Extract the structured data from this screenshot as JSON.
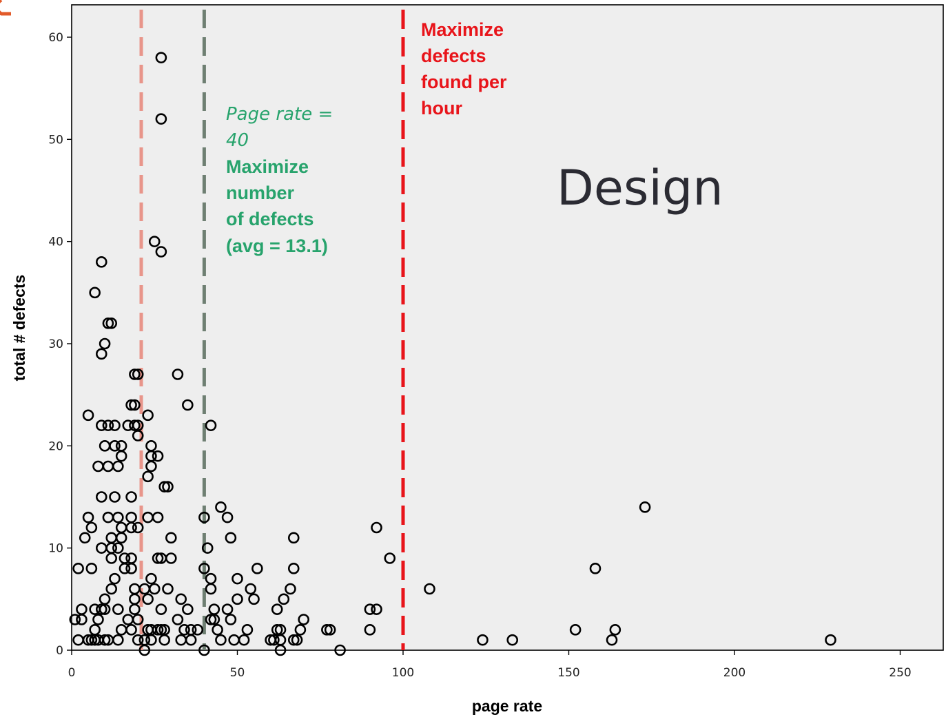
{
  "chart_data": {
    "type": "scatter",
    "xlabel": "page rate",
    "ylabel": "total # defects",
    "xlim": [
      0,
      262
    ],
    "ylim": [
      0,
      63
    ],
    "x_ticks": [
      0,
      50,
      100,
      150,
      200,
      250
    ],
    "y_ticks": [
      0,
      10,
      20,
      30,
      40,
      50,
      60
    ],
    "grid": false,
    "plot_background": "#eeeeee",
    "reference_lines": [
      {
        "x": 21,
        "color": "#e8958a"
      },
      {
        "x": 40,
        "color": "#6e7f72"
      },
      {
        "x": 100,
        "color": "#e8141a"
      }
    ],
    "annotations": {
      "red": [
        "Maximize",
        "defects",
        "found per",
        "hour"
      ],
      "green_italic": [
        "Page rate =",
        "40"
      ],
      "green": [
        "Maximize",
        "number",
        "of defects",
        "(avg = 13.1)"
      ],
      "design": "Design"
    },
    "points": [
      [
        27,
        58
      ],
      [
        27,
        52
      ],
      [
        25,
        40
      ],
      [
        27,
        39
      ],
      [
        9,
        38
      ],
      [
        7,
        35
      ],
      [
        11,
        32
      ],
      [
        12,
        32
      ],
      [
        10,
        30
      ],
      [
        9,
        29
      ],
      [
        19,
        27
      ],
      [
        20,
        27
      ],
      [
        32,
        27
      ],
      [
        18,
        24
      ],
      [
        19,
        24
      ],
      [
        35,
        24
      ],
      [
        5,
        23
      ],
      [
        23,
        23
      ],
      [
        9,
        22
      ],
      [
        11,
        22
      ],
      [
        13,
        22
      ],
      [
        17,
        22
      ],
      [
        19,
        22
      ],
      [
        20,
        22
      ],
      [
        42,
        22
      ],
      [
        20,
        21
      ],
      [
        10,
        20
      ],
      [
        13,
        20
      ],
      [
        15,
        20
      ],
      [
        24,
        20
      ],
      [
        24,
        19
      ],
      [
        26,
        19
      ],
      [
        15,
        19
      ],
      [
        8,
        18
      ],
      [
        11,
        18
      ],
      [
        14,
        18
      ],
      [
        24,
        18
      ],
      [
        23,
        17
      ],
      [
        28,
        16
      ],
      [
        29,
        16
      ],
      [
        9,
        15
      ],
      [
        13,
        15
      ],
      [
        18,
        15
      ],
      [
        45,
        14
      ],
      [
        173,
        14
      ],
      [
        5,
        13
      ],
      [
        11,
        13
      ],
      [
        14,
        13
      ],
      [
        18,
        13
      ],
      [
        23,
        13
      ],
      [
        26,
        13
      ],
      [
        40,
        13
      ],
      [
        47,
        13
      ],
      [
        6,
        12
      ],
      [
        15,
        12
      ],
      [
        18,
        12
      ],
      [
        20,
        12
      ],
      [
        92,
        12
      ],
      [
        4,
        11
      ],
      [
        12,
        11
      ],
      [
        15,
        11
      ],
      [
        30,
        11
      ],
      [
        48,
        11
      ],
      [
        67,
        11
      ],
      [
        9,
        10
      ],
      [
        12,
        10
      ],
      [
        14,
        10
      ],
      [
        41,
        10
      ],
      [
        12,
        9
      ],
      [
        16,
        9
      ],
      [
        18,
        9
      ],
      [
        26,
        9
      ],
      [
        27,
        9
      ],
      [
        30,
        9
      ],
      [
        96,
        9
      ],
      [
        2,
        8
      ],
      [
        6,
        8
      ],
      [
        16,
        8
      ],
      [
        18,
        8
      ],
      [
        40,
        8
      ],
      [
        56,
        8
      ],
      [
        67,
        8
      ],
      [
        158,
        8
      ],
      [
        13,
        7
      ],
      [
        24,
        7
      ],
      [
        42,
        7
      ],
      [
        50,
        7
      ],
      [
        12,
        6
      ],
      [
        19,
        6
      ],
      [
        22,
        6
      ],
      [
        25,
        6
      ],
      [
        29,
        6
      ],
      [
        42,
        6
      ],
      [
        54,
        6
      ],
      [
        66,
        6
      ],
      [
        108,
        6
      ],
      [
        10,
        5
      ],
      [
        19,
        5
      ],
      [
        23,
        5
      ],
      [
        33,
        5
      ],
      [
        50,
        5
      ],
      [
        55,
        5
      ],
      [
        64,
        5
      ],
      [
        3,
        4
      ],
      [
        7,
        4
      ],
      [
        9,
        4
      ],
      [
        10,
        4
      ],
      [
        14,
        4
      ],
      [
        19,
        4
      ],
      [
        27,
        4
      ],
      [
        35,
        4
      ],
      [
        43,
        4
      ],
      [
        47,
        4
      ],
      [
        62,
        4
      ],
      [
        90,
        4
      ],
      [
        92,
        4
      ],
      [
        1,
        3
      ],
      [
        3,
        3
      ],
      [
        8,
        3
      ],
      [
        17,
        3
      ],
      [
        20,
        3
      ],
      [
        32,
        3
      ],
      [
        42,
        3
      ],
      [
        43,
        3
      ],
      [
        48,
        3
      ],
      [
        70,
        3
      ],
      [
        7,
        2
      ],
      [
        15,
        2
      ],
      [
        18,
        2
      ],
      [
        23,
        2
      ],
      [
        24,
        2
      ],
      [
        26,
        2
      ],
      [
        27,
        2
      ],
      [
        28,
        2
      ],
      [
        34,
        2
      ],
      [
        36,
        2
      ],
      [
        38,
        2
      ],
      [
        44,
        2
      ],
      [
        53,
        2
      ],
      [
        62,
        2
      ],
      [
        63,
        2
      ],
      [
        69,
        2
      ],
      [
        77,
        2
      ],
      [
        78,
        2
      ],
      [
        90,
        2
      ],
      [
        152,
        2
      ],
      [
        164,
        2
      ],
      [
        2,
        1
      ],
      [
        5,
        1
      ],
      [
        6,
        1
      ],
      [
        7,
        1
      ],
      [
        8,
        1
      ],
      [
        10,
        1
      ],
      [
        11,
        1
      ],
      [
        14,
        1
      ],
      [
        20,
        1
      ],
      [
        22,
        1
      ],
      [
        24,
        1
      ],
      [
        28,
        1
      ],
      [
        33,
        1
      ],
      [
        36,
        1
      ],
      [
        45,
        1
      ],
      [
        49,
        1
      ],
      [
        52,
        1
      ],
      [
        60,
        1
      ],
      [
        61,
        1
      ],
      [
        63,
        1
      ],
      [
        67,
        1
      ],
      [
        68,
        1
      ],
      [
        124,
        1
      ],
      [
        133,
        1
      ],
      [
        163,
        1
      ],
      [
        229,
        1
      ],
      [
        22,
        0
      ],
      [
        40,
        0
      ],
      [
        63,
        0
      ],
      [
        81,
        0
      ]
    ]
  }
}
